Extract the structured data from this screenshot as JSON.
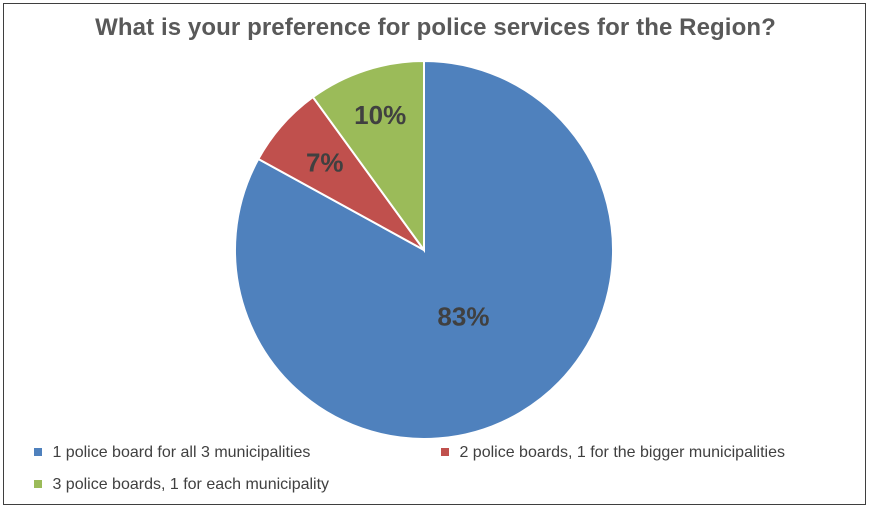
{
  "chart_data": {
    "type": "pie",
    "title": "What is your preference for police services for the Region?",
    "slices": [
      {
        "label": "1 police board for all 3 municipalities",
        "value": 83,
        "display": "83%",
        "color": "#4f81bd"
      },
      {
        "label": "2 police boards, 1 for the bigger municipalities",
        "value": 7,
        "display": "7%",
        "color": "#c0504d"
      },
      {
        "label": "3 police boards, 1 for each municipality",
        "value": 10,
        "display": "10%",
        "color": "#9bbb59"
      }
    ],
    "legend_position": "bottom"
  }
}
